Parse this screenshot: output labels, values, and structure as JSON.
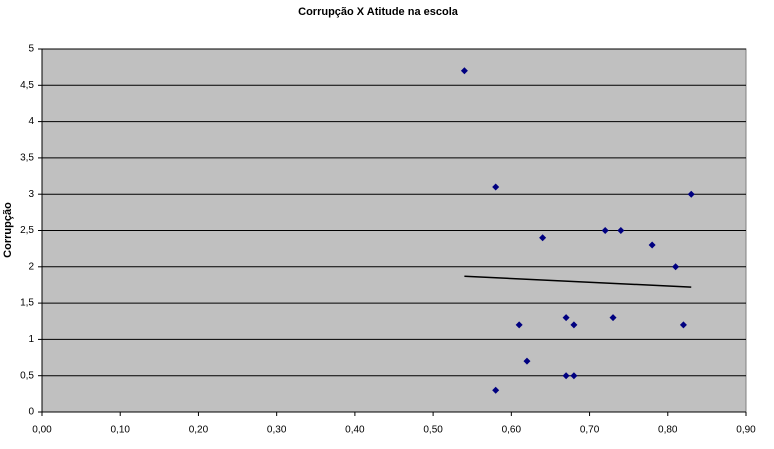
{
  "chart_data": {
    "type": "scatter",
    "title": "Corrupção X Atitude na escola",
    "y_label": "Corrupção",
    "series": [
      {
        "color": "#000080",
        "x": [
          0.54,
          0.58,
          0.83,
          0.64,
          0.72,
          0.74,
          0.78,
          0.81,
          0.61,
          0.67,
          0.68,
          0.73,
          0.82,
          0.62,
          0.58,
          0.67,
          0.68
        ],
        "values": [
          4.7,
          3.1,
          3.0,
          2.4,
          2.5,
          2.5,
          2.3,
          2.0,
          1.2,
          1.3,
          1.2,
          1.3,
          1.2,
          0.7,
          0.3,
          0.5,
          0.5
        ]
      }
    ],
    "trendline": {
      "color": "#000000",
      "x": [
        0.54,
        0.83
      ],
      "values": [
        1.87,
        1.72
      ]
    },
    "xlim": [
      0,
      0.9
    ],
    "ylim": [
      0,
      5
    ],
    "xticks": [
      {
        "value": 0,
        "label": "0,00"
      },
      {
        "value": 0.1,
        "label": "0,10"
      },
      {
        "value": 0.2,
        "label": "0,20"
      },
      {
        "value": 0.3,
        "label": "0,30"
      },
      {
        "value": 0.4,
        "label": "0,40"
      },
      {
        "value": 0.5,
        "label": "0,50"
      },
      {
        "value": 0.6,
        "label": "0,60"
      },
      {
        "value": 0.7,
        "label": "0,70"
      },
      {
        "value": 0.8,
        "label": "0,80"
      },
      {
        "value": 0.9,
        "label": "0,90"
      }
    ],
    "yticks": [
      0,
      {
        "value": 0.5,
        "label": "0,5"
      },
      1,
      {
        "value": 1.5,
        "label": "1,5"
      },
      2,
      {
        "value": 2.5,
        "label": "2,5"
      },
      3,
      {
        "value": 3.5,
        "label": "3,5"
      },
      4,
      {
        "value": 4.5,
        "label": "4,5"
      },
      5
    ],
    "grid": true,
    "plot_background": "#c0c0c0"
  }
}
